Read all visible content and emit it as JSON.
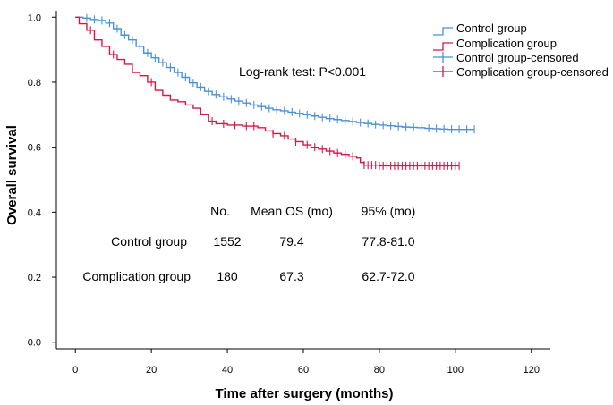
{
  "chart_data": {
    "type": "line",
    "subtype": "kaplan-meier",
    "title": "",
    "xlabel": "Time after surgery (months)",
    "ylabel": "Overall survival",
    "xlim": [
      -5,
      125
    ],
    "ylim": [
      -0.02,
      1.02
    ],
    "xticks": [
      0,
      20,
      40,
      60,
      80,
      100,
      120
    ],
    "yticks": [
      0.0,
      0.2,
      0.4,
      0.6,
      0.8,
      1.0
    ],
    "ytick_labels": [
      "0.0",
      "0.2",
      "0.4",
      "0.6",
      "0.8",
      "1.0"
    ],
    "legend": {
      "position": "top-right",
      "entries": [
        "Control group",
        "Complication group",
        "Control group-censored",
        "Complication group-censored"
      ]
    },
    "annotation": "Log-rank test: P<0.001",
    "series": [
      {
        "name": "Control group",
        "color": "#4a90d9",
        "points": [
          [
            0,
            1.0
          ],
          [
            2,
            0.997
          ],
          [
            4,
            0.993
          ],
          [
            6,
            0.99
          ],
          [
            8,
            0.982
          ],
          [
            10,
            0.965
          ],
          [
            12,
            0.945
          ],
          [
            14,
            0.93
          ],
          [
            16,
            0.91
          ],
          [
            18,
            0.89
          ],
          [
            20,
            0.875
          ],
          [
            22,
            0.86
          ],
          [
            24,
            0.845
          ],
          [
            26,
            0.83
          ],
          [
            28,
            0.815
          ],
          [
            30,
            0.798
          ],
          [
            32,
            0.785
          ],
          [
            34,
            0.772
          ],
          [
            36,
            0.762
          ],
          [
            38,
            0.755
          ],
          [
            40,
            0.748
          ],
          [
            42,
            0.742
          ],
          [
            44,
            0.736
          ],
          [
            46,
            0.73
          ],
          [
            48,
            0.725
          ],
          [
            50,
            0.72
          ],
          [
            52,
            0.715
          ],
          [
            54,
            0.712
          ],
          [
            56,
            0.708
          ],
          [
            58,
            0.704
          ],
          [
            60,
            0.7
          ],
          [
            62,
            0.696
          ],
          [
            64,
            0.692
          ],
          [
            66,
            0.688
          ],
          [
            68,
            0.685
          ],
          [
            70,
            0.682
          ],
          [
            72,
            0.679
          ],
          [
            74,
            0.676
          ],
          [
            76,
            0.673
          ],
          [
            78,
            0.67
          ],
          [
            80,
            0.668
          ],
          [
            82,
            0.666
          ],
          [
            84,
            0.664
          ],
          [
            86,
            0.662
          ],
          [
            88,
            0.661
          ],
          [
            90,
            0.66
          ],
          [
            92,
            0.658
          ],
          [
            94,
            0.657
          ],
          [
            96,
            0.656
          ],
          [
            98,
            0.655
          ],
          [
            100,
            0.655
          ],
          [
            105,
            0.655
          ]
        ],
        "censored": [
          3,
          5,
          7,
          9,
          11,
          13,
          15,
          17,
          19,
          21,
          23,
          25,
          27,
          29,
          31,
          33,
          35,
          37,
          39,
          41,
          43,
          45,
          47,
          49,
          51,
          53,
          55,
          57,
          59,
          61,
          63,
          65,
          67,
          69,
          71,
          73,
          75,
          77,
          79,
          81,
          83,
          85,
          87,
          89,
          91,
          93,
          95,
          97,
          99,
          101,
          103,
          105
        ]
      },
      {
        "name": "Complication group",
        "color": "#d6164a",
        "points": [
          [
            0,
            1.0
          ],
          [
            1,
            0.98
          ],
          [
            3,
            0.96
          ],
          [
            5,
            0.93
          ],
          [
            7,
            0.91
          ],
          [
            9,
            0.885
          ],
          [
            11,
            0.87
          ],
          [
            13,
            0.855
          ],
          [
            15,
            0.83
          ],
          [
            17,
            0.82
          ],
          [
            19,
            0.8
          ],
          [
            21,
            0.775
          ],
          [
            23,
            0.76
          ],
          [
            25,
            0.745
          ],
          [
            27,
            0.74
          ],
          [
            29,
            0.73
          ],
          [
            31,
            0.72
          ],
          [
            33,
            0.7
          ],
          [
            35,
            0.68
          ],
          [
            37,
            0.672
          ],
          [
            40,
            0.668
          ],
          [
            44,
            0.665
          ],
          [
            48,
            0.66
          ],
          [
            50,
            0.65
          ],
          [
            52,
            0.642
          ],
          [
            54,
            0.635
          ],
          [
            56,
            0.625
          ],
          [
            58,
            0.617
          ],
          [
            60,
            0.607
          ],
          [
            62,
            0.6
          ],
          [
            64,
            0.594
          ],
          [
            66,
            0.588
          ],
          [
            68,
            0.582
          ],
          [
            70,
            0.578
          ],
          [
            72,
            0.572
          ],
          [
            74,
            0.567
          ],
          [
            75,
            0.553
          ],
          [
            76,
            0.545
          ],
          [
            80,
            0.543
          ],
          [
            90,
            0.543
          ],
          [
            101,
            0.543
          ]
        ],
        "censored": [
          4,
          10,
          20,
          36,
          39,
          42,
          45,
          47,
          52,
          55,
          58,
          61,
          63,
          65,
          67,
          69,
          71,
          73,
          76,
          77,
          78,
          79,
          80,
          81,
          82,
          83,
          84,
          85,
          86,
          87,
          88,
          89,
          90,
          91,
          92,
          93,
          94,
          95,
          96,
          97,
          98,
          99,
          100,
          101
        ]
      }
    ]
  },
  "summary_table": {
    "headers": [
      "No.",
      "Mean OS (mo)",
      "95% (mo)"
    ],
    "rows": [
      {
        "group": "Control group",
        "n": "1552",
        "mean": "79.4",
        "ci": "77.8-81.0"
      },
      {
        "group": "Complication group",
        "n": "180",
        "mean": "67.3",
        "ci": "62.7-72.0"
      }
    ]
  }
}
